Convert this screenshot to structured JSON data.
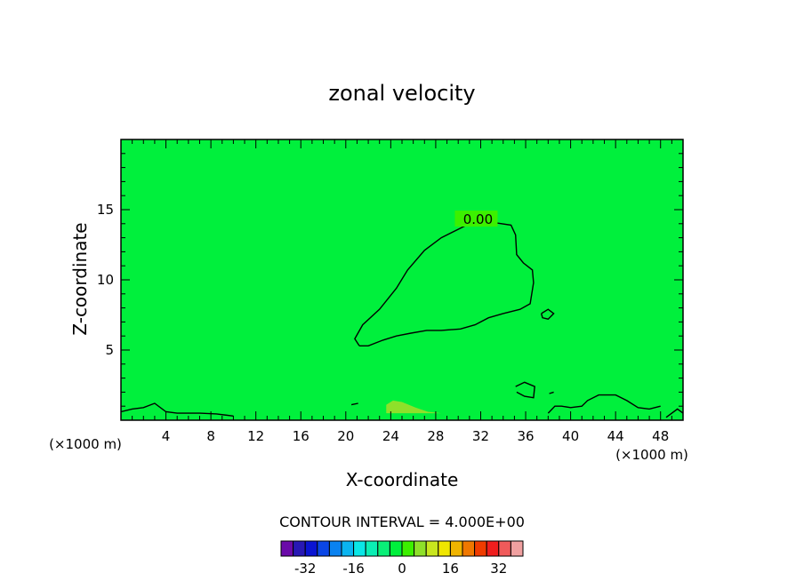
{
  "chart_data": {
    "type": "contour",
    "title": "zonal velocity",
    "xlabel": "X-coordinate",
    "ylabel": "Z-coordinate",
    "x_unit": "(×1000 m)",
    "z_unit": "(×1000 m)",
    "xlim": [
      0,
      50
    ],
    "ylim": [
      0,
      20
    ],
    "x_ticks": [
      4,
      8,
      12,
      16,
      20,
      24,
      28,
      32,
      36,
      40,
      44,
      48
    ],
    "y_ticks": [
      5,
      10,
      15
    ],
    "contour_label": "0.00",
    "contour_interval_text": "CONTOUR INTERVAL = 4.000E+00",
    "background_level": -2,
    "regions": [
      {
        "name": "positive-core",
        "level": 2,
        "color": "#00f03c",
        "points": [
          [
            21.2,
            5.3
          ],
          [
            20.8,
            5.8
          ],
          [
            21.5,
            6.8
          ],
          [
            23,
            7.9
          ],
          [
            24.5,
            9.4
          ],
          [
            25.5,
            10.7
          ],
          [
            27,
            12.1
          ],
          [
            28.5,
            13
          ],
          [
            30,
            13.6
          ],
          [
            31,
            14
          ],
          [
            33,
            14.1
          ],
          [
            34.7,
            13.9
          ],
          [
            35.1,
            13.2
          ],
          [
            35.2,
            11.8
          ],
          [
            35.8,
            11.2
          ],
          [
            36.6,
            10.7
          ],
          [
            36.7,
            9.8
          ],
          [
            36.4,
            8.3
          ],
          [
            35.5,
            7.9
          ],
          [
            34,
            7.6
          ],
          [
            32.7,
            7.3
          ],
          [
            31.5,
            6.8
          ],
          [
            30.2,
            6.5
          ],
          [
            28.5,
            6.4
          ],
          [
            27.2,
            6.4
          ],
          [
            25.8,
            6.2
          ],
          [
            24.5,
            6
          ],
          [
            23.3,
            5.7
          ],
          [
            22,
            5.3
          ]
        ]
      },
      {
        "name": "small-cell",
        "level": 2,
        "color": "#00f03c",
        "points": [
          [
            37.4,
            7.6
          ],
          [
            38,
            7.9
          ],
          [
            38.5,
            7.6
          ],
          [
            38,
            7.2
          ],
          [
            37.5,
            7.3
          ]
        ]
      },
      {
        "name": "bottom-lobe",
        "level": 6,
        "color": "#8ee02a",
        "points": [
          [
            23.6,
            0.5
          ],
          [
            23.6,
            1.1
          ],
          [
            24.2,
            1.4
          ],
          [
            25,
            1.3
          ],
          [
            26.2,
            0.9
          ],
          [
            27.3,
            0.6
          ],
          [
            28.5,
            0.5
          ]
        ]
      }
    ],
    "zero_contours": [
      [
        [
          21.2,
          5.3
        ],
        [
          20.8,
          5.8
        ],
        [
          21.5,
          6.8
        ],
        [
          23,
          7.9
        ],
        [
          24.5,
          9.4
        ],
        [
          25.5,
          10.7
        ],
        [
          27,
          12.1
        ],
        [
          28.5,
          13
        ],
        [
          30,
          13.6
        ],
        [
          31,
          14
        ],
        [
          33,
          14.1
        ],
        [
          34.7,
          13.9
        ],
        [
          35.1,
          13.2
        ],
        [
          35.2,
          11.8
        ],
        [
          35.8,
          11.2
        ],
        [
          36.6,
          10.7
        ],
        [
          36.7,
          9.8
        ],
        [
          36.4,
          8.3
        ],
        [
          35.5,
          7.9
        ],
        [
          34,
          7.6
        ],
        [
          32.7,
          7.3
        ],
        [
          31.5,
          6.8
        ],
        [
          30.2,
          6.5
        ],
        [
          28.5,
          6.4
        ],
        [
          27.2,
          6.4
        ],
        [
          25.8,
          6.2
        ],
        [
          24.5,
          6
        ],
        [
          23.3,
          5.7
        ],
        [
          22,
          5.3
        ],
        [
          21.2,
          5.3
        ]
      ],
      [
        [
          37.4,
          7.6
        ],
        [
          38,
          7.9
        ],
        [
          38.5,
          7.6
        ],
        [
          38,
          7.2
        ],
        [
          37.5,
          7.3
        ],
        [
          37.4,
          7.6
        ]
      ],
      [
        [
          35.1,
          2.4
        ],
        [
          35.9,
          2.7
        ],
        [
          36.8,
          2.4
        ],
        [
          36.7,
          1.6
        ],
        [
          35.9,
          1.7
        ],
        [
          35.2,
          2
        ]
      ],
      [
        [
          0,
          0.6
        ],
        [
          1,
          0.8
        ],
        [
          2,
          0.9
        ],
        [
          3,
          1.2
        ],
        [
          4,
          0.6
        ],
        [
          5,
          0.5
        ],
        [
          6,
          0.5
        ],
        [
          7,
          0.5
        ],
        [
          8.5,
          0.45
        ],
        [
          10,
          0.3
        ]
      ],
      [
        [
          38,
          0.5
        ],
        [
          38.6,
          1
        ],
        [
          39.2,
          1
        ],
        [
          40,
          0.9
        ],
        [
          41,
          1
        ],
        [
          41.5,
          1.4
        ],
        [
          42.5,
          1.8
        ],
        [
          44,
          1.8
        ],
        [
          45,
          1.4
        ],
        [
          46,
          0.9
        ],
        [
          47,
          0.8
        ],
        [
          48,
          1
        ]
      ],
      [
        [
          48.5,
          0.2
        ],
        [
          49,
          0.5
        ],
        [
          49.5,
          0.8
        ],
        [
          50,
          0.5
        ]
      ],
      [
        [
          20.5,
          1.1
        ],
        [
          21.1,
          1.2
        ]
      ],
      [
        [
          38.1,
          1.9
        ],
        [
          38.5,
          2
        ]
      ]
    ],
    "colorbar": {
      "tick_labels": [
        "-32",
        "-16",
        "0",
        "16",
        "32"
      ],
      "tick_values": [
        -32,
        -16,
        0,
        16,
        32
      ],
      "levels": [
        -36,
        -32,
        -28,
        -24,
        -20,
        -16,
        -12,
        -8,
        -4,
        0,
        4,
        8,
        12,
        16,
        20,
        24,
        28,
        32,
        36
      ],
      "colors": [
        "#6a0aa8",
        "#2818b4",
        "#0a14d2",
        "#0a46e6",
        "#0a82f0",
        "#0ab4f0",
        "#0ae6e6",
        "#0aeeb4",
        "#0af078",
        "#00f03c",
        "#3cf000",
        "#8ee02a",
        "#c8e61e",
        "#f0e600",
        "#f0b400",
        "#f07800",
        "#f03c00",
        "#f01e1e",
        "#f05a5a",
        "#f0a0a0"
      ]
    }
  }
}
